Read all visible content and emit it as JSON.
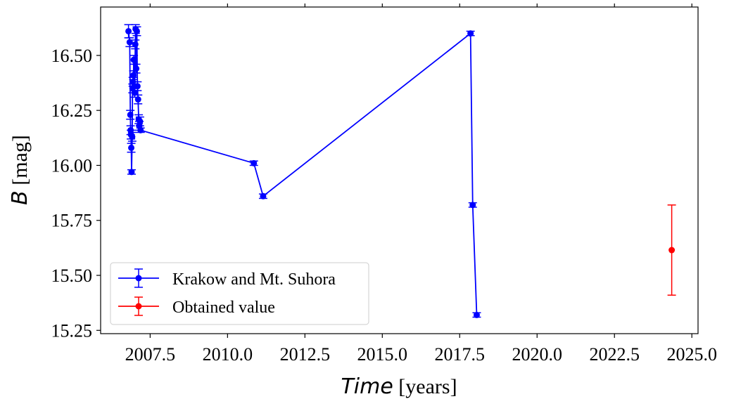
{
  "chart_data": {
    "type": "scatter",
    "xlabel": {
      "italic": "Time",
      "rest": " [years]"
    },
    "ylabel": {
      "italic": "B",
      "rest": " [mag]"
    },
    "xlim": [
      2005.9,
      2025.2
    ],
    "ylim": [
      15.235,
      16.72
    ],
    "xticks": [
      2007.5,
      2010.0,
      2012.5,
      2015.0,
      2017.5,
      2020.0,
      2022.5,
      2025.0
    ],
    "xtick_labels": [
      "2007.5",
      "2010.0",
      "2012.5",
      "2015.0",
      "2017.5",
      "2020.0",
      "2022.5",
      "2025.0"
    ],
    "yticks": [
      15.25,
      15.5,
      15.75,
      16.0,
      16.25,
      16.5
    ],
    "ytick_labels": [
      "15.25",
      "15.50",
      "15.75",
      "16.00",
      "16.25",
      "16.50"
    ],
    "grid": false,
    "legend_position": "lower-left",
    "series": [
      {
        "name": "Krakow and Mt. Suhora",
        "color": "#0000ff",
        "connected": true,
        "points": [
          {
            "x": 2006.8,
            "y": 16.61,
            "err": 0.03
          },
          {
            "x": 2006.84,
            "y": 16.56,
            "err": 0.02
          },
          {
            "x": 2006.86,
            "y": 16.23,
            "err": 0.02
          },
          {
            "x": 2006.87,
            "y": 16.16,
            "err": 0.02
          },
          {
            "x": 2006.88,
            "y": 16.14,
            "err": 0.02
          },
          {
            "x": 2006.89,
            "y": 16.08,
            "err": 0.02
          },
          {
            "x": 2006.9,
            "y": 15.97,
            "err": 0.01
          },
          {
            "x": 2006.92,
            "y": 16.13,
            "err": 0.02
          },
          {
            "x": 2006.93,
            "y": 16.35,
            "err": 0.02
          },
          {
            "x": 2006.94,
            "y": 16.38,
            "err": 0.02
          },
          {
            "x": 2006.96,
            "y": 16.41,
            "err": 0.02
          },
          {
            "x": 2006.97,
            "y": 16.48,
            "err": 0.02
          },
          {
            "x": 2006.99,
            "y": 16.36,
            "err": 0.02
          },
          {
            "x": 2007.0,
            "y": 16.33,
            "err": 0.02
          },
          {
            "x": 2007.02,
            "y": 16.55,
            "err": 0.02
          },
          {
            "x": 2007.03,
            "y": 16.62,
            "err": 0.02
          },
          {
            "x": 2007.05,
            "y": 16.44,
            "err": 0.02
          },
          {
            "x": 2007.07,
            "y": 16.61,
            "err": 0.02
          },
          {
            "x": 2007.09,
            "y": 16.36,
            "err": 0.02
          },
          {
            "x": 2007.11,
            "y": 16.3,
            "err": 0.02
          },
          {
            "x": 2007.13,
            "y": 16.21,
            "err": 0.02
          },
          {
            "x": 2007.15,
            "y": 16.18,
            "err": 0.02
          },
          {
            "x": 2007.17,
            "y": 16.2,
            "err": 0.02
          },
          {
            "x": 2007.19,
            "y": 16.16,
            "err": 0.01
          },
          {
            "x": 2010.85,
            "y": 16.01,
            "err": 0.01
          },
          {
            "x": 2011.15,
            "y": 15.86,
            "err": 0.01
          },
          {
            "x": 2017.85,
            "y": 16.6,
            "err": 0.01
          },
          {
            "x": 2017.92,
            "y": 15.82,
            "err": 0.01
          },
          {
            "x": 2018.05,
            "y": 15.32,
            "err": 0.01
          }
        ]
      },
      {
        "name": "Obtained value",
        "color": "#ff0000",
        "connected": false,
        "points": [
          {
            "x": 2024.35,
            "y": 15.615,
            "err": 0.205
          }
        ]
      }
    ]
  }
}
